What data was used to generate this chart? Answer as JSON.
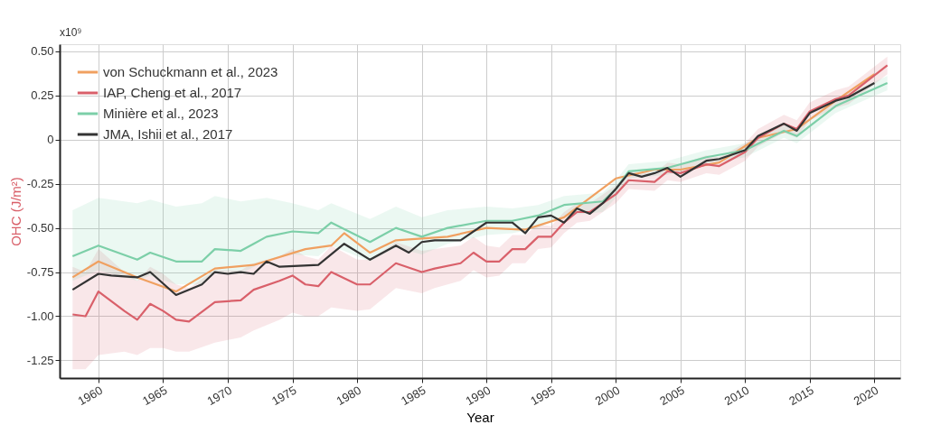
{
  "chart_data": {
    "type": "line",
    "xlabel": "Year",
    "ylabel": "OHC (J/m²)",
    "annotations": [
      "x10⁹"
    ],
    "xlim": [
      1957,
      2022
    ],
    "xticks": [
      1960,
      1965,
      1970,
      1975,
      1980,
      1985,
      1990,
      1995,
      2000,
      2005,
      2010,
      2015,
      2020
    ],
    "ylim": [
      -1.35,
      0.54
    ],
    "yticks": [
      {
        "value": 0.5,
        "label": "0.50"
      },
      0.25,
      0,
      -0.25,
      {
        "value": -0.5,
        "label": "-0.50"
      },
      -0.75,
      {
        "value": -1,
        "label": "-1.00"
      },
      -1.25
    ],
    "grid": true,
    "legend": "top left",
    "line_style": "solid",
    "series": [
      {
        "name": "von Schuckmann et al., 2023",
        "color": "#f0a060",
        "x": [
          1958,
          1960,
          1963,
          1966,
          1969,
          1972,
          1976,
          1978,
          1979,
          1981,
          1983,
          1987,
          1990,
          1993,
          1996,
          2000,
          2003,
          2005,
          2008,
          2011,
          2014,
          2017,
          2020
        ],
        "values": [
          -0.78,
          -0.69,
          -0.78,
          -0.86,
          -0.73,
          -0.71,
          -0.62,
          -0.6,
          -0.53,
          -0.64,
          -0.57,
          -0.55,
          -0.5,
          -0.51,
          -0.44,
          -0.22,
          -0.17,
          -0.17,
          -0.13,
          0.01,
          0.06,
          0.22,
          0.37
        ]
      },
      {
        "name": "IAP, Cheng et al., 2017",
        "color": "#d9606a",
        "x": [
          1958,
          1959,
          1960,
          1962,
          1963,
          1964,
          1965,
          1966,
          1967,
          1969,
          1971,
          1972,
          1974,
          1975,
          1976,
          1977,
          1978,
          1980,
          1981,
          1983,
          1985,
          1986,
          1988,
          1989,
          1990,
          1991,
          1992,
          1993,
          1994,
          1995,
          1996,
          1997,
          1998,
          1999,
          2000,
          2001,
          2003,
          2004,
          2005,
          2007,
          2008,
          2010,
          2011,
          2013,
          2014,
          2015,
          2017,
          2018,
          2021
        ],
        "values": [
          -0.99,
          -1.0,
          -0.86,
          -0.97,
          -1.02,
          -0.93,
          -0.97,
          -1.02,
          -1.03,
          -0.92,
          -0.91,
          -0.85,
          -0.8,
          -0.77,
          -0.82,
          -0.83,
          -0.75,
          -0.82,
          -0.82,
          -0.7,
          -0.75,
          -0.73,
          -0.7,
          -0.64,
          -0.69,
          -0.69,
          -0.62,
          -0.62,
          -0.55,
          -0.55,
          -0.47,
          -0.41,
          -0.41,
          -0.36,
          -0.31,
          -0.23,
          -0.24,
          -0.18,
          -0.19,
          -0.14,
          -0.15,
          -0.07,
          0.01,
          0.09,
          0.06,
          0.16,
          0.23,
          0.25,
          0.42
        ],
        "lower": [
          -1.3,
          -1.3,
          -1.22,
          -1.2,
          -1.22,
          -1.18,
          -1.18,
          -1.2,
          -1.2,
          -1.15,
          -1.12,
          -1.08,
          -1.02,
          -0.98,
          -1.0,
          -1.0,
          -0.95,
          -0.97,
          -0.96,
          -0.84,
          -0.87,
          -0.84,
          -0.8,
          -0.74,
          -0.78,
          -0.77,
          -0.7,
          -0.7,
          -0.62,
          -0.61,
          -0.53,
          -0.47,
          -0.46,
          -0.41,
          -0.36,
          -0.28,
          -0.29,
          -0.23,
          -0.24,
          -0.19,
          -0.2,
          -0.12,
          -0.04,
          0.04,
          0.01,
          0.11,
          0.18,
          0.2,
          0.37
        ],
        "upper": [
          -0.72,
          -0.75,
          -0.62,
          -0.75,
          -0.8,
          -0.72,
          -0.76,
          -0.82,
          -0.84,
          -0.74,
          -0.74,
          -0.7,
          -0.66,
          -0.62,
          -0.66,
          -0.68,
          -0.6,
          -0.68,
          -0.68,
          -0.58,
          -0.63,
          -0.62,
          -0.6,
          -0.55,
          -0.6,
          -0.61,
          -0.54,
          -0.54,
          -0.48,
          -0.49,
          -0.41,
          -0.36,
          -0.36,
          -0.31,
          -0.26,
          -0.18,
          -0.19,
          -0.13,
          -0.14,
          -0.09,
          -0.1,
          -0.02,
          0.06,
          0.14,
          0.11,
          0.21,
          0.28,
          0.3,
          0.47
        ]
      },
      {
        "name": "Minière et al., 2023",
        "color": "#7ccfa8",
        "x": [
          1958,
          1960,
          1963,
          1964,
          1966,
          1968,
          1969,
          1971,
          1972,
          1973,
          1975,
          1977,
          1978,
          1981,
          1983,
          1985,
          1987,
          1990,
          1992,
          1994,
          1996,
          1999,
          2000,
          2001,
          2004,
          2007,
          2010,
          2013,
          2014,
          2017,
          2021
        ],
        "values": [
          -0.66,
          -0.6,
          -0.68,
          -0.64,
          -0.69,
          -0.69,
          -0.62,
          -0.63,
          -0.59,
          -0.55,
          -0.52,
          -0.53,
          -0.47,
          -0.58,
          -0.5,
          -0.55,
          -0.5,
          -0.46,
          -0.46,
          -0.43,
          -0.37,
          -0.35,
          -0.28,
          -0.18,
          -0.16,
          -0.1,
          -0.06,
          0.05,
          0.02,
          0.19,
          0.32
        ],
        "lower": [
          -0.8,
          -0.74,
          -0.8,
          -0.77,
          -0.82,
          -0.82,
          -0.75,
          -0.76,
          -0.72,
          -0.68,
          -0.65,
          -0.66,
          -0.6,
          -0.69,
          -0.61,
          -0.65,
          -0.59,
          -0.54,
          -0.53,
          -0.5,
          -0.43,
          -0.41,
          -0.33,
          -0.22,
          -0.2,
          -0.14,
          -0.1,
          0.01,
          -0.02,
          0.15,
          0.28
        ],
        "upper": [
          -0.4,
          -0.33,
          -0.36,
          -0.34,
          -0.38,
          -0.36,
          -0.32,
          -0.35,
          -0.34,
          -0.33,
          -0.36,
          -0.4,
          -0.36,
          -0.45,
          -0.38,
          -0.44,
          -0.4,
          -0.38,
          -0.39,
          -0.37,
          -0.32,
          -0.3,
          -0.23,
          -0.14,
          -0.12,
          -0.06,
          -0.02,
          0.09,
          0.06,
          0.23,
          0.36
        ]
      },
      {
        "name": "JMA, Ishii et al., 2017",
        "color": "#333333",
        "x": [
          1958,
          1960,
          1961,
          1963,
          1964,
          1966,
          1968,
          1969,
          1970,
          1971,
          1972,
          1973,
          1974,
          1977,
          1979,
          1981,
          1983,
          1984,
          1985,
          1986,
          1988,
          1990,
          1992,
          1993,
          1994,
          1995,
          1996,
          1997,
          1998,
          1999,
          2000,
          2001,
          2002,
          2003,
          2004,
          2005,
          2007,
          2008,
          2010,
          2011,
          2013,
          2014,
          2015,
          2017,
          2018,
          2020
        ],
        "values": [
          -0.85,
          -0.76,
          -0.77,
          -0.78,
          -0.75,
          -0.88,
          -0.82,
          -0.75,
          -0.76,
          -0.75,
          -0.76,
          -0.69,
          -0.72,
          -0.71,
          -0.59,
          -0.68,
          -0.6,
          -0.64,
          -0.58,
          -0.57,
          -0.57,
          -0.47,
          -0.47,
          -0.53,
          -0.44,
          -0.43,
          -0.47,
          -0.39,
          -0.42,
          -0.36,
          -0.28,
          -0.19,
          -0.21,
          -0.19,
          -0.16,
          -0.21,
          -0.12,
          -0.11,
          -0.06,
          0.02,
          0.09,
          0.05,
          0.15,
          0.22,
          0.24,
          0.32
        ]
      }
    ]
  }
}
